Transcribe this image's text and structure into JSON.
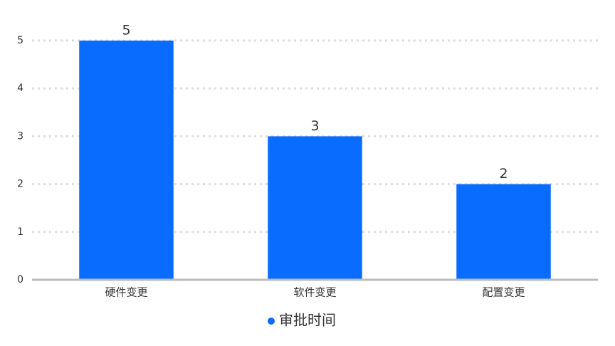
{
  "chart_data": {
    "type": "bar",
    "categories": [
      "硬件变更",
      "软件变更",
      "配置变更"
    ],
    "series": [
      {
        "name": "审批时间",
        "color": "#0a6cff",
        "values": [
          5,
          3,
          2
        ]
      }
    ],
    "ylim": [
      0,
      5
    ],
    "yticks": [
      0,
      1,
      2,
      3,
      4,
      5
    ],
    "grid": true,
    "legend": "bottom"
  }
}
